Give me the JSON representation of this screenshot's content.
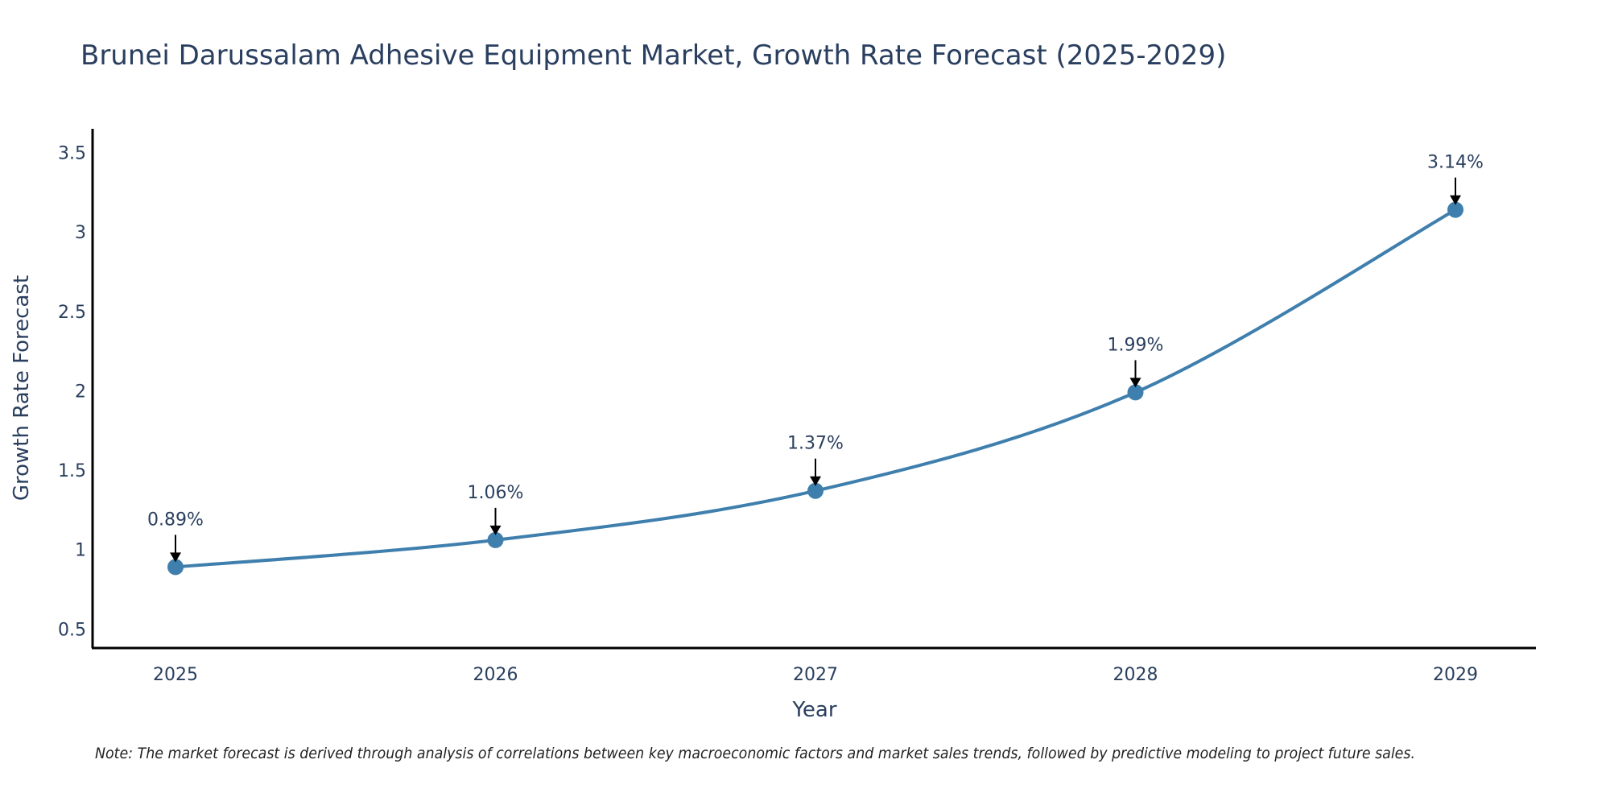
{
  "chart_data": {
    "type": "line",
    "title": "Brunei Darussalam Adhesive Equipment Market, Growth Rate Forecast (2025-2029)",
    "xlabel": "Year",
    "ylabel": "Growth Rate Forecast",
    "categories": [
      "2025",
      "2026",
      "2027",
      "2028",
      "2029"
    ],
    "series": [
      {
        "name": "Growth Rate Forecast",
        "values": [
          0.89,
          1.06,
          1.37,
          1.99,
          3.14
        ],
        "labels": [
          "0.89%",
          "1.06%",
          "1.37%",
          "1.99%",
          "3.14%"
        ]
      }
    ],
    "ylim": [
      0.38,
      3.65
    ],
    "yticks": [
      0.5,
      1,
      1.5,
      2,
      2.5,
      3,
      3.5
    ],
    "ytick_labels": [
      "0.5",
      "1",
      "1.5",
      "2",
      "2.5",
      "3",
      "3.5"
    ],
    "grid": false,
    "line_shape": "spline",
    "note": "Note: The market forecast is derived through analysis of correlations between key macroeconomic factors and market sales trends, followed by predictive modeling to project future sales."
  },
  "colors": {
    "line": "#3f7fad",
    "marker": "#3f7fad",
    "axis": "#000000",
    "text": "#2a3f5f",
    "arrow": "#000000"
  }
}
